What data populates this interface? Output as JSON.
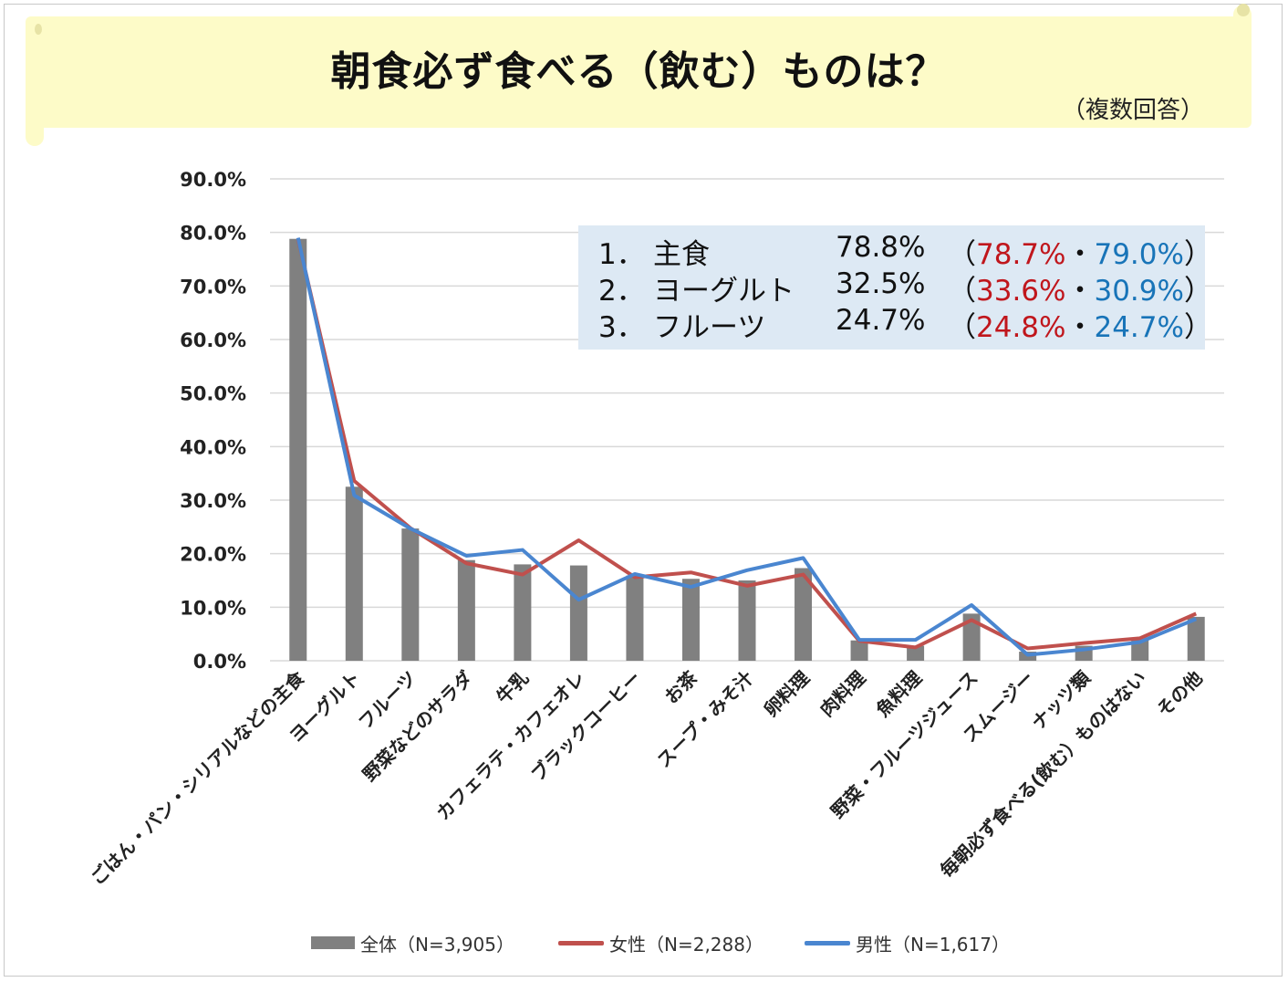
{
  "title": "朝食必ず食べる（飲む）ものは？",
  "subtitle": "（複数回答）",
  "summary": [
    {
      "rank": "1．",
      "item": "主食",
      "total": "78.8%",
      "open": "（",
      "female": "78.7%",
      "sep": "・",
      "male": "79.0%",
      "close": "）"
    },
    {
      "rank": "2．",
      "item": "ヨーグルト",
      "total": "32.5%",
      "open": "（",
      "female": "33.6%",
      "sep": "・",
      "male": "30.9%",
      "close": "）"
    },
    {
      "rank": "3．",
      "item": "フルーツ",
      "total": "24.7%",
      "open": "（",
      "female": "24.8%",
      "sep": "・",
      "male": "24.7%",
      "close": "）"
    }
  ],
  "legend": {
    "total": "全体（N=3,905）",
    "female": "女性（N=2,288）",
    "male": "男性（N=1,617）"
  },
  "colors": {
    "bar": "#808080",
    "female": "#c0504d",
    "male": "#4a86d0",
    "grid": "#d9d9d9",
    "banner": "#fdfbc8",
    "summary_bg": "#dde9f4",
    "female_text": "#c0161c",
    "male_text": "#1874b8"
  },
  "chart_data": {
    "type": "bar",
    "title": "朝食必ず食べる（飲む）ものは？",
    "ylim": [
      0,
      90
    ],
    "yticks": [
      0,
      10,
      20,
      30,
      40,
      50,
      60,
      70,
      80,
      90
    ],
    "ytick_labels": [
      "0.0%",
      "10.0%",
      "20.0%",
      "30.0%",
      "40.0%",
      "50.0%",
      "60.0%",
      "70.0%",
      "80.0%",
      "90.0%"
    ],
    "categories": [
      "ごはん・パン・シリアルなどの主食",
      "ヨーグルト",
      "フルーツ",
      "野菜などのサラダ",
      "牛乳",
      "カフェラテ・カフェオレ",
      "ブラックコーヒー",
      "お茶",
      "スープ・みそ汁",
      "卵料理",
      "肉料理",
      "魚料理",
      "野菜・フルーツジュース",
      "スムージー",
      "ナッツ類",
      "毎朝必ず食べる(飲む）ものはない",
      "その他"
    ],
    "series": [
      {
        "name": "全体（N=3,905）",
        "type": "bar",
        "values": [
          78.8,
          32.5,
          24.7,
          18.8,
          18.0,
          17.8,
          15.9,
          15.3,
          15.0,
          17.3,
          3.8,
          2.8,
          8.8,
          1.7,
          2.8,
          3.9,
          8.2
        ]
      },
      {
        "name": "女性（N=2,288）",
        "type": "line",
        "values": [
          78.7,
          33.6,
          24.8,
          18.2,
          16.1,
          22.5,
          15.6,
          16.5,
          14.0,
          16.1,
          3.7,
          2.5,
          7.6,
          2.3,
          3.3,
          4.2,
          8.8
        ]
      },
      {
        "name": "男性（N=1,617）",
        "type": "line",
        "values": [
          79.0,
          30.9,
          24.7,
          19.6,
          20.7,
          11.4,
          16.2,
          13.8,
          16.9,
          19.2,
          3.9,
          3.9,
          10.4,
          1.1,
          2.1,
          3.5,
          7.8
        ]
      }
    ],
    "legend_position": "bottom"
  }
}
